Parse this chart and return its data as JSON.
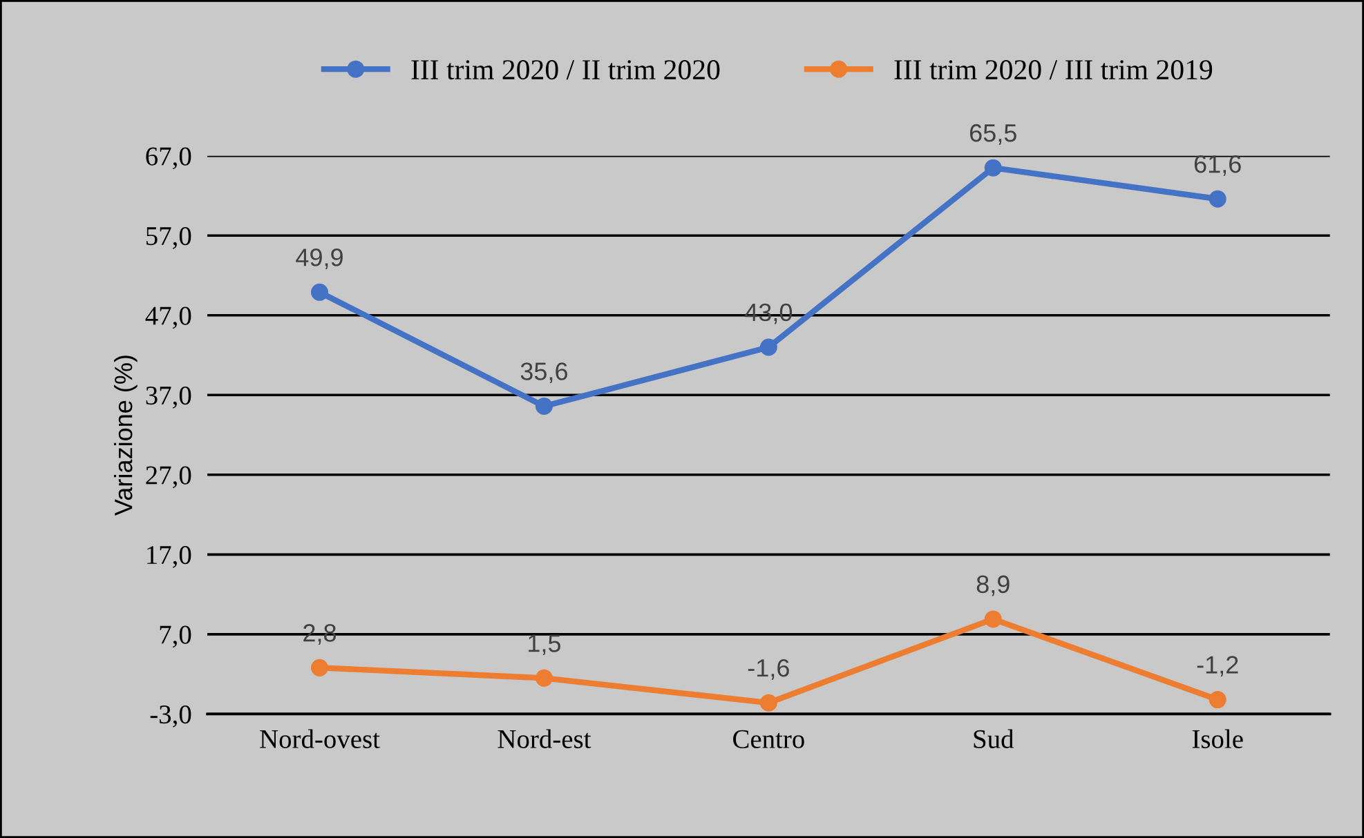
{
  "chart_data": {
    "type": "line",
    "ylabel": "Variazione (%)",
    "categories": [
      "Nord-ovest",
      "Nord-est",
      "Centro",
      "Sud",
      "Isole"
    ],
    "series": [
      {
        "name": "III trim 2020 / II trim 2020",
        "color": "#4472c4",
        "values": [
          49.9,
          35.6,
          43.0,
          65.5,
          61.6
        ],
        "value_labels": [
          "49,9",
          "35,6",
          "43,0",
          "65,5",
          "61,6"
        ]
      },
      {
        "name": "III trim 2020 / III trim 2019",
        "color": "#ed7d31",
        "values": [
          2.8,
          1.5,
          -1.6,
          8.9,
          -1.2
        ],
        "value_labels": [
          "2,8",
          "1,5",
          "-1,6",
          "8,9",
          "-1,2"
        ]
      }
    ],
    "ylim": [
      -3,
      67
    ],
    "yticks": [
      {
        "value": -3,
        "label": "-3,0"
      },
      {
        "value": 7,
        "label": "7,0"
      },
      {
        "value": 17,
        "label": "17,0"
      },
      {
        "value": 27,
        "label": "27,0"
      },
      {
        "value": 37,
        "label": "37,0"
      },
      {
        "value": 47,
        "label": "47,0"
      },
      {
        "value": 57,
        "label": "57,0"
      },
      {
        "value": 67,
        "label": "67,0"
      }
    ],
    "grid": "y",
    "legend": "top",
    "marker": "circle",
    "line_style": "solid"
  }
}
